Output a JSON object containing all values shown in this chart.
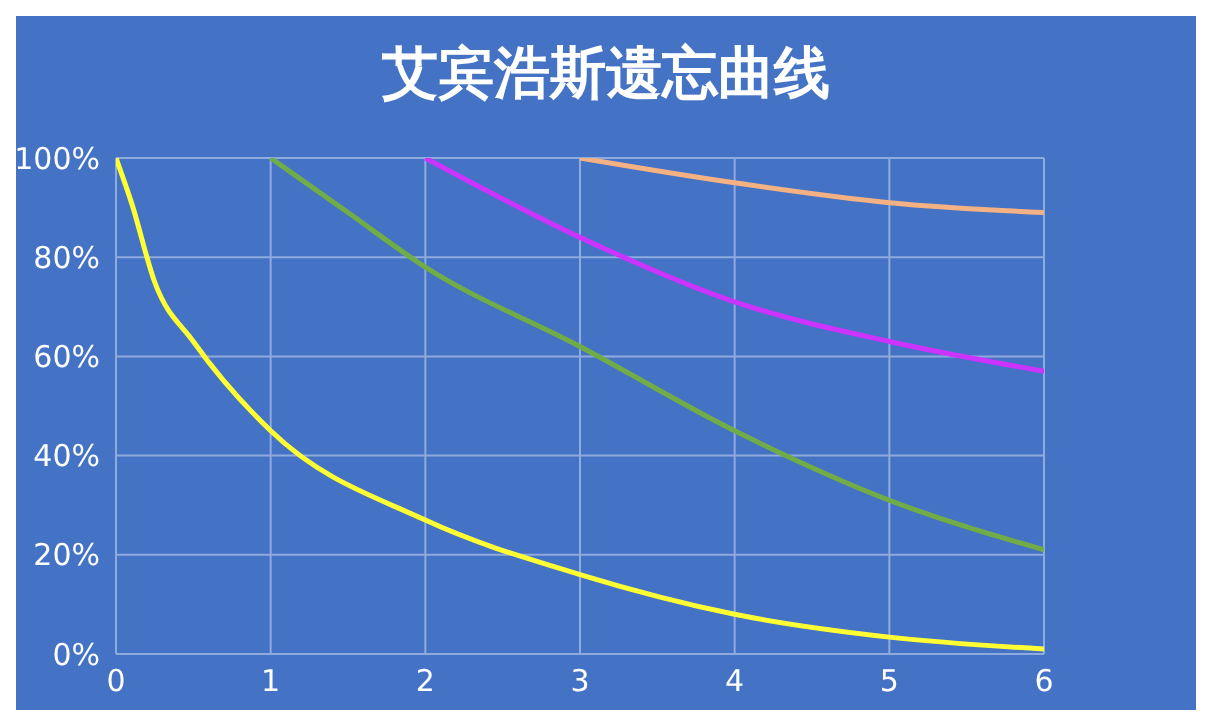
{
  "chart_data": {
    "type": "line",
    "title": "艾宾浩斯遗忘曲线",
    "xlim": [
      0,
      6
    ],
    "xticks": [
      0,
      1,
      2,
      3,
      4,
      5,
      6
    ],
    "ylim": [
      0,
      100
    ],
    "yticks": [
      {
        "value": 0,
        "label": "0%"
      },
      {
        "value": 20,
        "label": "20%"
      },
      {
        "value": 40,
        "label": "40%"
      },
      {
        "value": 60,
        "label": "60%"
      },
      {
        "value": 80,
        "label": "80%"
      },
      {
        "value": 100,
        "label": "100%"
      }
    ],
    "grid": true,
    "legend": false,
    "marker": "none",
    "line_style": "solid",
    "series": [
      {
        "color": "#ffff33",
        "x": [
          0,
          0.1,
          0.25,
          0.5,
          1,
          2,
          3,
          4,
          5,
          6
        ],
        "values": [
          100,
          91,
          75,
          63,
          45,
          27,
          16,
          8,
          3.4,
          1
        ]
      },
      {
        "color": "#70ad47",
        "x": [
          1,
          1.5,
          2,
          3,
          4,
          5,
          6
        ],
        "values": [
          100,
          89,
          78,
          62,
          45,
          31,
          21
        ]
      },
      {
        "color": "#cc33ff",
        "x": [
          2,
          3,
          4,
          5,
          6
        ],
        "values": [
          100,
          84,
          71,
          63,
          57
        ]
      },
      {
        "color": "#f4b183",
        "x": [
          3,
          4,
          5,
          6
        ],
        "values": [
          100,
          95,
          91,
          89
        ]
      }
    ]
  }
}
